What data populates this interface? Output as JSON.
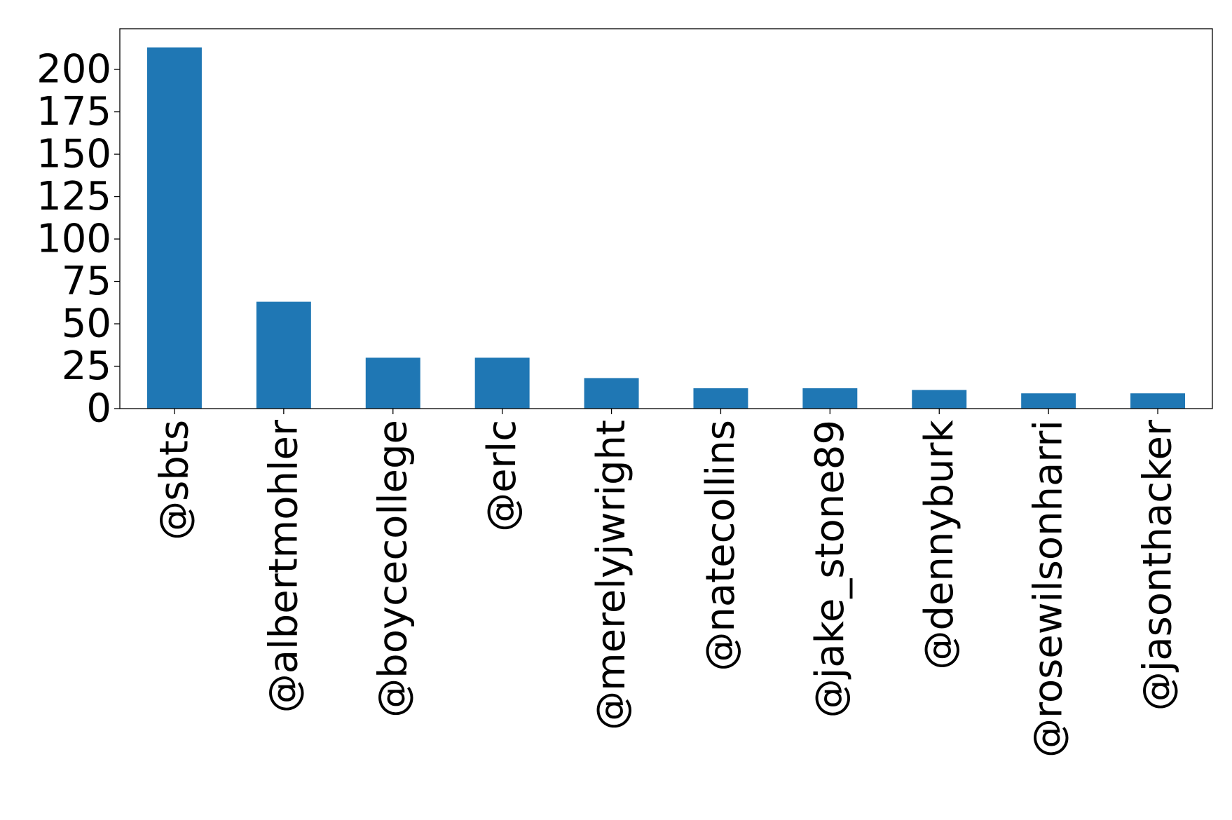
{
  "chart_data": {
    "type": "bar",
    "title": "",
    "xlabel": "",
    "ylabel": "",
    "categories": [
      "@sbts",
      "@albertmohler",
      "@boycecollege",
      "@erlc",
      "@merelyjwright",
      "@natecollins",
      "@jake_stone89",
      "@dennyburk",
      "@rosewilsonharri",
      "@jasonthacker"
    ],
    "values": [
      213,
      63,
      30,
      30,
      18,
      12,
      12,
      11,
      9,
      9
    ],
    "ylim": [
      0,
      224
    ],
    "yticks": [
      0,
      25,
      50,
      75,
      100,
      125,
      150,
      175,
      200
    ],
    "grid": false,
    "legend": "none",
    "bar_color": "#1f77b4",
    "axis_color": "#000000"
  }
}
